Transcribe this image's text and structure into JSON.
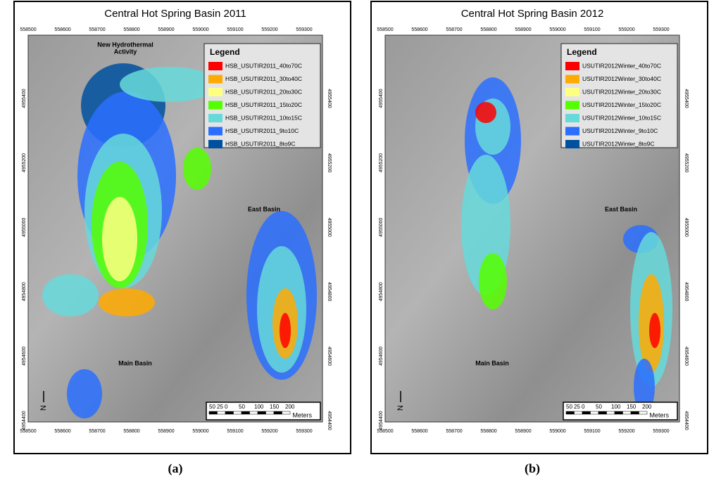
{
  "panels": [
    {
      "title": "Central Hot Spring Basin 2011",
      "x_ticks": [
        558500,
        558600,
        558700,
        558800,
        558900,
        559000,
        559100,
        559200,
        559300
      ],
      "y_ticks": [
        4955400,
        4955200,
        4955000,
        4954800,
        4954600,
        4954400
      ],
      "legend_title": "Legend",
      "legend": [
        {
          "label": "HSB_USUTIR2011_40to70C",
          "color": "#ff0000"
        },
        {
          "label": "HSB_USUTIR2011_30to40C",
          "color": "#ffaa00"
        },
        {
          "label": "HSB_USUTIR2011_20to30C",
          "color": "#ffff80"
        },
        {
          "label": "HSB_USUTIR2011_15to20C",
          "color": "#55ff00"
        },
        {
          "label": "HSB_USUTIR2011_10to15C",
          "color": "#66d9d9"
        },
        {
          "label": "HSB_USUTIR2011_9to10C",
          "color": "#2a6fff"
        },
        {
          "label": "HSB_USUTIR2011_8to9C",
          "color": "#0050a0"
        }
      ],
      "places": {
        "new_activity": [
          "New Hydrothermal",
          "Activity"
        ],
        "east": "East Basin",
        "main": "Main Basin"
      },
      "north": "N",
      "scale": [
        "50",
        "25",
        "0",
        "50",
        "100",
        "150",
        "200"
      ],
      "scale_unit": "Meters",
      "caption": "(a)"
    },
    {
      "title": "Central Hot Spring Basin 2012",
      "x_ticks": [
        558500,
        558600,
        558700,
        558800,
        558900,
        559000,
        559100,
        559200,
        559300
      ],
      "y_ticks": [
        4955400,
        4955200,
        4955000,
        4954800,
        4954600,
        4954400
      ],
      "legend_title": "Legend",
      "legend": [
        {
          "label": "USUTIR2012Winter_40to70C",
          "color": "#ff0000"
        },
        {
          "label": "USUTIR2012Winter_30to40C",
          "color": "#ffaa00"
        },
        {
          "label": "USUTIR2012Winter_20to30C",
          "color": "#ffff80"
        },
        {
          "label": "USUTIR2012Winter_15to20C",
          "color": "#55ff00"
        },
        {
          "label": "USUTIR2012Winter_10to15C",
          "color": "#66d9d9"
        },
        {
          "label": "USUTIR2012Winter_9to10C",
          "color": "#2a6fff"
        },
        {
          "label": "USUTIR2012Winter_8to9C",
          "color": "#0050a0"
        }
      ],
      "places": {
        "east": "East Basin",
        "main": "Main Basin"
      },
      "north": "N",
      "scale": [
        "50",
        "25",
        "0",
        "50",
        "100",
        "150",
        "200"
      ],
      "scale_unit": "Meters",
      "caption": "(b)"
    }
  ]
}
